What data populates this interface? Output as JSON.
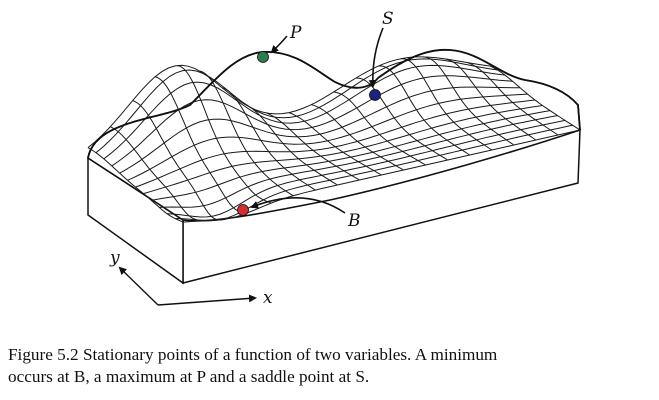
{
  "figure": {
    "labels": {
      "maximum": "P",
      "saddle": "S",
      "minimum": "B",
      "x_axis": "x",
      "y_axis": "y"
    },
    "colors": {
      "maximum_point": "#2e7d4f",
      "saddle_point": "#1a237e",
      "minimum_point": "#d32f2f",
      "line": "#111111"
    }
  },
  "caption": {
    "line1": "Figure 5.2  Stationary points of a function of two variables. A minimum",
    "line2": "occurs at B, a maximum at P and a saddle point at S."
  }
}
